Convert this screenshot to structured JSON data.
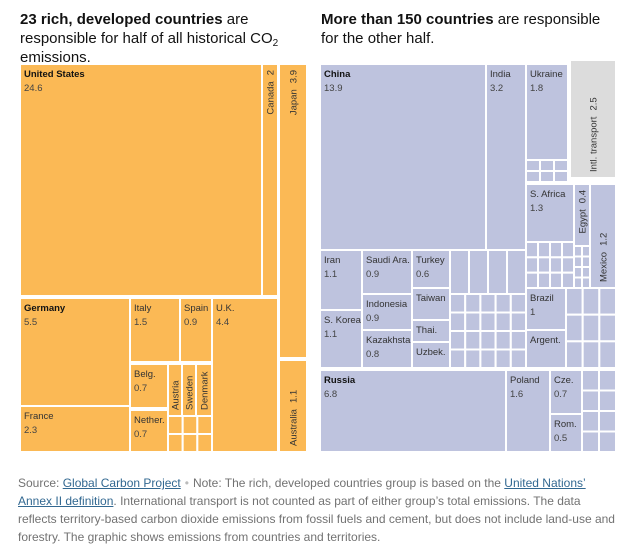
{
  "header": {
    "left_bold": "23 rich, developed countries",
    "left_rest_1": " are responsible for half of all historical CO",
    "left_sub": "2",
    "left_rest_2": " emissions.",
    "right_bold": "More than 150 countries",
    "right_rest": " are responsible for the other half."
  },
  "source": {
    "prefix": "Source: ",
    "link1": "Global Carbon Project",
    "note_prefix": "Note: The rich, developed countries group is based on the ",
    "link2": "United Nations’ Annex II definition",
    "note_rest": ". International transport is not counted as part of either group’s total emissions. The data reflects territory-based carbon dioxide emissions from fossil fuels and cement, but does not include land-use and forestry. The graphic shows emissions from countries and territories."
  },
  "colors": {
    "developed": "#fbb955",
    "other": "#bec3de",
    "transport": "#dcdcdc",
    "border": "#ffffff"
  },
  "chart_data": {
    "type": "treemap",
    "unit": "% of historical CO2 emissions",
    "groups": [
      {
        "name": "23 rich, developed countries",
        "items": [
          {
            "label": "United States",
            "value": 24.6,
            "bold": true
          },
          {
            "label": "Germany",
            "value": 5.5,
            "bold": true
          },
          {
            "label": "Italy",
            "value": 1.5
          },
          {
            "label": "Spain",
            "value": 0.9
          },
          {
            "label": "U.K.",
            "value": 4.4
          },
          {
            "label": "France",
            "value": 2.3
          },
          {
            "label": "Belg.",
            "value": 0.7
          },
          {
            "label": "Nether.",
            "value": 0.7
          },
          {
            "label": "Austria"
          },
          {
            "label": "Sweden"
          },
          {
            "label": "Denmark"
          },
          {
            "label": "Canada",
            "value": 2.0
          },
          {
            "label": "Japan",
            "value": 3.9
          },
          {
            "label": "Australia",
            "value": 1.1
          }
        ]
      },
      {
        "name": "More than 150 countries",
        "items": [
          {
            "label": "China",
            "value": 13.9,
            "bold": true
          },
          {
            "label": "India",
            "value": 3.2
          },
          {
            "label": "Ukraine",
            "value": 1.8
          },
          {
            "label": "Intl. transport",
            "value": 2.5
          },
          {
            "label": "S. Africa",
            "value": 1.3
          },
          {
            "label": "Egypt",
            "value": 0.4
          },
          {
            "label": "Mexico",
            "value": 1.2
          },
          {
            "label": "Iran",
            "value": 1.1
          },
          {
            "label": "Saudi Ara.",
            "value": 0.9
          },
          {
            "label": "Turkey",
            "value": 0.6
          },
          {
            "label": "Indonesia",
            "value": 0.9
          },
          {
            "label": "Taiwan"
          },
          {
            "label": "S. Korea",
            "value": 1.1
          },
          {
            "label": "Thai."
          },
          {
            "label": "Kazakhstan",
            "value": 0.8
          },
          {
            "label": "Uzbek."
          },
          {
            "label": "Brazil",
            "value": 1.0
          },
          {
            "label": "Argent."
          },
          {
            "label": "Russia",
            "value": 6.8,
            "bold": true
          },
          {
            "label": "Poland",
            "value": 1.6
          },
          {
            "label": "Cze.",
            "value": 0.7
          },
          {
            "label": "Rom.",
            "value": 0.5
          }
        ]
      }
    ]
  }
}
